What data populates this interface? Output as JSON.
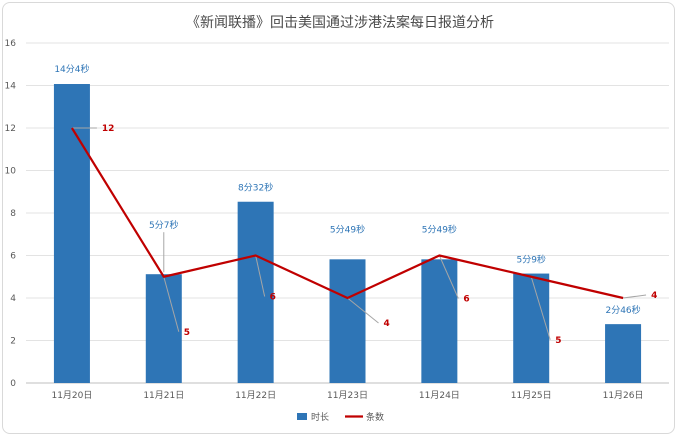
{
  "chart_data": {
    "type": "bar",
    "title": "《新闻联播》回击美国通过涉港法案每日报道分析",
    "categories": [
      "11月20日",
      "11月21日",
      "11月22日",
      "11月23日",
      "11月24日",
      "11月25日",
      "11月26日"
    ],
    "ylim": [
      0,
      16
    ],
    "yticks": [
      0,
      2,
      4,
      6,
      8,
      10,
      12,
      14,
      16
    ],
    "grid": true,
    "legend_position": "bottom-center",
    "series": [
      {
        "name": "时长",
        "type": "bar",
        "color": "#2e75b6",
        "values": [
          14.07,
          5.12,
          8.53,
          5.82,
          5.82,
          5.15,
          2.77
        ],
        "labels": [
          "14分4秒",
          "5分7秒",
          "8分32秒",
          "5分49秒",
          "5分49秒",
          "5分9秒",
          "2分46秒"
        ]
      },
      {
        "name": "条数",
        "type": "line",
        "color": "#c00000",
        "values": [
          12,
          5,
          6,
          4,
          6,
          5,
          4
        ],
        "labels": [
          "12",
          "5",
          "6",
          "4",
          "6",
          "5",
          "4"
        ]
      }
    ]
  }
}
